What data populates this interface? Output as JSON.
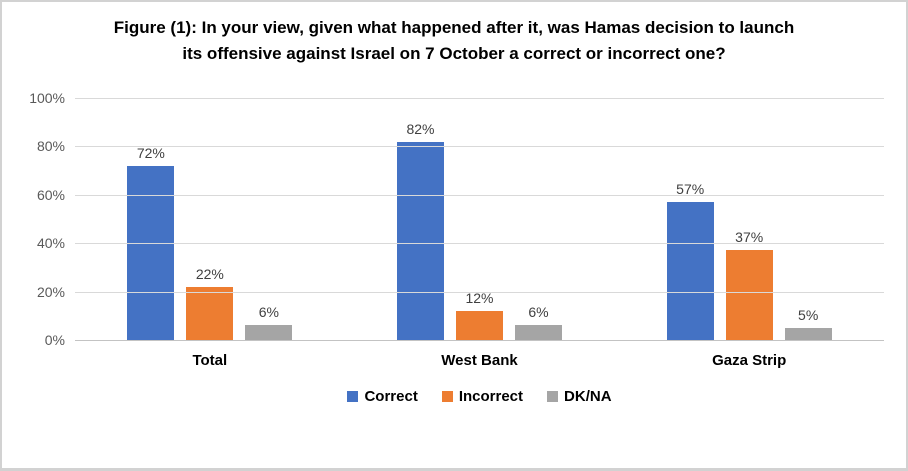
{
  "figure": {
    "background": "#ffffff",
    "border_color": "#d2d2d2"
  },
  "chart_data": {
    "type": "bar",
    "title": "Figure (1): In your view, given what happened after it, was Hamas decision to launch its offensive against Israel on 7 October a correct or incorrect one?",
    "categories": [
      "Total",
      "West Bank",
      "Gaza Strip"
    ],
    "series": [
      {
        "name": "Correct",
        "color": "#4472C4",
        "values": [
          72,
          82,
          57
        ]
      },
      {
        "name": "Incorrect",
        "color": "#ED7D31",
        "values": [
          22,
          12,
          37
        ]
      },
      {
        "name": "DK/NA",
        "color": "#A5A5A5",
        "values": [
          6,
          6,
          5
        ]
      }
    ],
    "value_suffix": "%",
    "xlabel": "",
    "ylabel": "",
    "ylim": [
      0,
      100
    ],
    "yticks": [
      {
        "value": 0,
        "label": "0%"
      },
      {
        "value": 20,
        "label": "20%"
      },
      {
        "value": 40,
        "label": "40%"
      },
      {
        "value": 60,
        "label": "60%"
      },
      {
        "value": 80,
        "label": "80%"
      },
      {
        "value": 100,
        "label": "100%"
      }
    ],
    "grid": true,
    "legend_position": "bottom",
    "colors": {
      "gridline": "#d9d9d9",
      "axis_line": "#c3c3c3",
      "axis_text": "#595959",
      "value_label_text": "#404040"
    }
  }
}
